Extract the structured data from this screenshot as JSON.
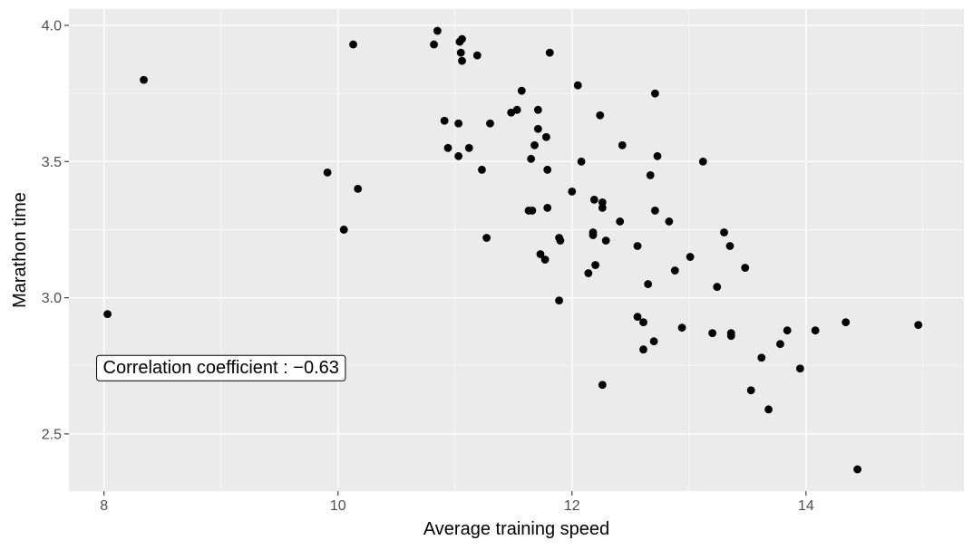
{
  "chart_data": {
    "type": "scatter",
    "xlabel": "Average training speed",
    "ylabel": "Marathon time",
    "xlim": [
      7.7,
      15.35
    ],
    "ylim": [
      2.29,
      4.06
    ],
    "xticks": [
      8,
      10,
      12,
      14
    ],
    "xtick_labels": [
      "8",
      "10",
      "12",
      "14"
    ],
    "yticks": [
      2.5,
      3.0,
      3.5,
      4.0
    ],
    "ytick_labels": [
      "2.5",
      "3.0",
      "3.5",
      "4.0"
    ],
    "grid": true,
    "annotation": {
      "text": "Correlation coefficient : −0.63",
      "x": 9.0,
      "y": 2.745
    },
    "points": [
      [
        8.03,
        2.94
      ],
      [
        8.34,
        3.8
      ],
      [
        9.91,
        3.46
      ],
      [
        10.05,
        3.25
      ],
      [
        10.13,
        3.93
      ],
      [
        10.17,
        3.4
      ],
      [
        10.82,
        3.93
      ],
      [
        10.85,
        3.98
      ],
      [
        10.91,
        3.65
      ],
      [
        10.94,
        3.55
      ],
      [
        11.03,
        3.64
      ],
      [
        11.03,
        3.52
      ],
      [
        11.04,
        3.94
      ],
      [
        11.05,
        3.9
      ],
      [
        11.06,
        3.95
      ],
      [
        11.06,
        3.87
      ],
      [
        11.12,
        3.55
      ],
      [
        11.19,
        3.89
      ],
      [
        11.23,
        3.47
      ],
      [
        11.27,
        3.22
      ],
      [
        11.3,
        3.64
      ],
      [
        11.48,
        3.68
      ],
      [
        11.53,
        3.69
      ],
      [
        11.57,
        3.76
      ],
      [
        11.63,
        3.32
      ],
      [
        11.65,
        3.51
      ],
      [
        11.66,
        3.32
      ],
      [
        11.68,
        3.56
      ],
      [
        11.71,
        3.69
      ],
      [
        11.71,
        3.62
      ],
      [
        11.73,
        3.16
      ],
      [
        11.77,
        3.14
      ],
      [
        11.78,
        3.59
      ],
      [
        11.79,
        3.47
      ],
      [
        11.79,
        3.33
      ],
      [
        11.81,
        3.9
      ],
      [
        11.89,
        3.22
      ],
      [
        11.89,
        2.99
      ],
      [
        11.9,
        3.21
      ],
      [
        12.0,
        3.39
      ],
      [
        12.05,
        3.78
      ],
      [
        12.08,
        3.5
      ],
      [
        12.14,
        3.09
      ],
      [
        12.18,
        3.24
      ],
      [
        12.18,
        3.23
      ],
      [
        12.19,
        3.36
      ],
      [
        12.2,
        3.12
      ],
      [
        12.24,
        3.67
      ],
      [
        12.26,
        3.35
      ],
      [
        12.26,
        3.33
      ],
      [
        12.26,
        2.68
      ],
      [
        12.29,
        3.21
      ],
      [
        12.41,
        3.28
      ],
      [
        12.43,
        3.56
      ],
      [
        12.56,
        3.19
      ],
      [
        12.56,
        2.93
      ],
      [
        12.61,
        2.91
      ],
      [
        12.61,
        2.81
      ],
      [
        12.65,
        3.05
      ],
      [
        12.67,
        3.45
      ],
      [
        12.7,
        2.84
      ],
      [
        12.71,
        3.75
      ],
      [
        12.71,
        3.32
      ],
      [
        12.73,
        3.52
      ],
      [
        12.83,
        3.28
      ],
      [
        12.88,
        3.1
      ],
      [
        12.94,
        2.89
      ],
      [
        13.01,
        3.15
      ],
      [
        13.12,
        3.5
      ],
      [
        13.2,
        2.87
      ],
      [
        13.24,
        3.04
      ],
      [
        13.3,
        3.24
      ],
      [
        13.35,
        3.19
      ],
      [
        13.36,
        2.87
      ],
      [
        13.36,
        2.86
      ],
      [
        13.48,
        3.11
      ],
      [
        13.53,
        2.66
      ],
      [
        13.62,
        2.78
      ],
      [
        13.68,
        2.59
      ],
      [
        13.78,
        2.83
      ],
      [
        13.84,
        2.88
      ],
      [
        13.95,
        2.74
      ],
      [
        14.08,
        2.88
      ],
      [
        14.34,
        2.91
      ],
      [
        14.44,
        2.37
      ],
      [
        14.96,
        2.9
      ]
    ]
  }
}
